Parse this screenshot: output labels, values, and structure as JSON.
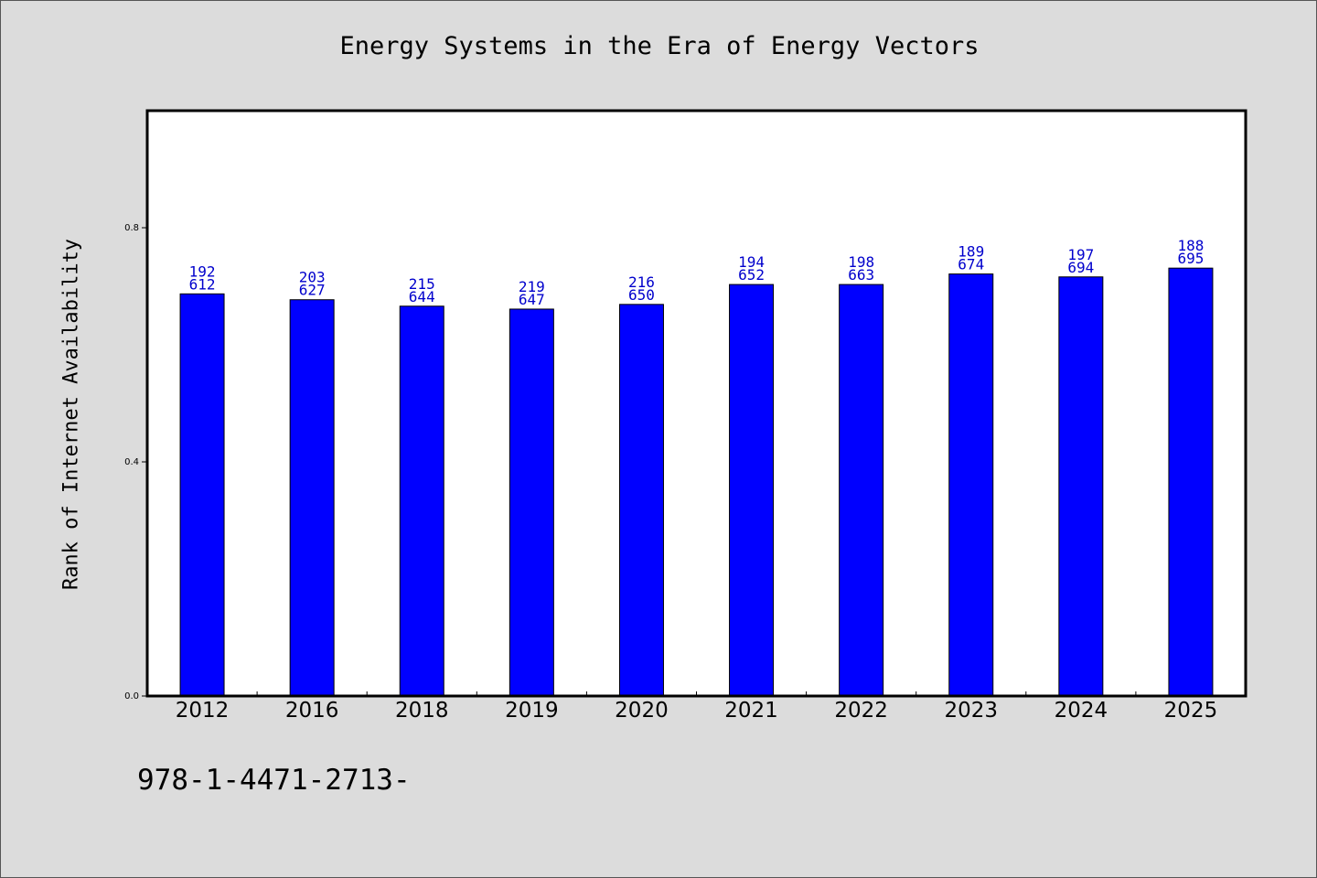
{
  "chart_data": {
    "type": "bar",
    "title": "Energy Systems in the Era of Energy Vectors",
    "xlabel": "",
    "ylabel": "Rank of Internet Availability",
    "categories": [
      "2012",
      "2016",
      "2018",
      "2019",
      "2020",
      "2021",
      "2022",
      "2023",
      "2024",
      "2025"
    ],
    "values": [
      0.687,
      0.677,
      0.666,
      0.661,
      0.669,
      0.703,
      0.703,
      0.721,
      0.716,
      0.731
    ],
    "label_top": [
      "192",
      "203",
      "215",
      "219",
      "216",
      "194",
      "198",
      "189",
      "197",
      "188"
    ],
    "label_bottom": [
      "612",
      "627",
      "644",
      "647",
      "650",
      "652",
      "663",
      "674",
      "694",
      "695"
    ],
    "yticks": [
      "0.0",
      "0.4",
      "0.8"
    ],
    "ylim": [
      0,
      1.0
    ],
    "grid": false,
    "bar_color": "#0000ff",
    "label_color": "#0000cc"
  },
  "footer": {
    "code": "978-1-4471-2713-"
  }
}
